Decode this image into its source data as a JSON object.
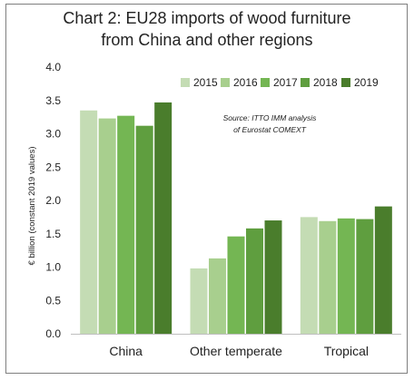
{
  "chart_data": {
    "type": "bar",
    "title": [
      "Chart 2: EU28 imports of wood furniture",
      "from China and other regions"
    ],
    "ylabel": "€ billion (constant 2019 values)",
    "xlabel": "",
    "categories": [
      "China",
      "Other temperate",
      "Tropical"
    ],
    "series": [
      {
        "name": "2015",
        "values": [
          3.35,
          0.98,
          1.75
        ],
        "color": "#c4dcb4"
      },
      {
        "name": "2016",
        "values": [
          3.23,
          1.13,
          1.69
        ],
        "color": "#a8cf8e"
      },
      {
        "name": "2017",
        "values": [
          3.27,
          1.46,
          1.73
        ],
        "color": "#74b653"
      },
      {
        "name": "2018",
        "values": [
          3.12,
          1.58,
          1.72
        ],
        "color": "#5f9e3f"
      },
      {
        "name": "2019",
        "values": [
          3.47,
          1.7,
          1.91
        ],
        "color": "#4a7d2c"
      }
    ],
    "ylim": [
      0,
      4.0
    ],
    "yticks": [
      "0.0",
      "0.5",
      "1.0",
      "1.5",
      "2.0",
      "2.5",
      "3.0",
      "3.5",
      "4.0"
    ],
    "grid": false,
    "legend_position": "top-right",
    "annotation": [
      "Source: ITTO IMM analysis",
      "of Eurostat COMEXT"
    ]
  }
}
